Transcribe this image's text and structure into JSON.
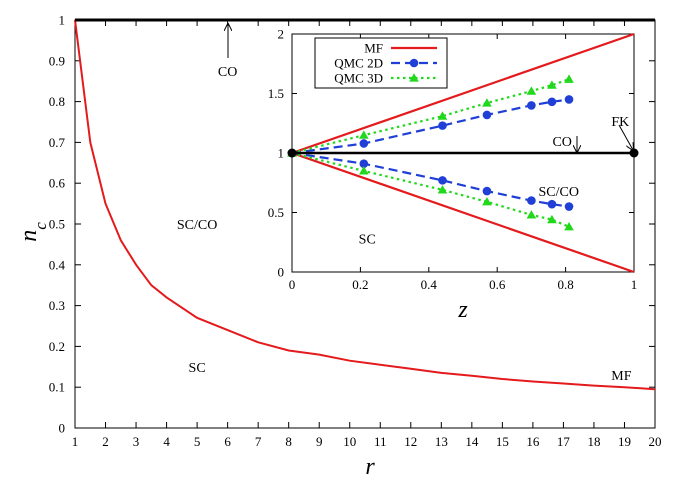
{
  "chart_data": [
    {
      "type": "line",
      "xlabel": "r",
      "ylabel": "n_c",
      "xlim": [
        1,
        20
      ],
      "ylim": [
        0,
        1
      ],
      "x_ticks": [
        1,
        2,
        3,
        4,
        5,
        6,
        7,
        8,
        9,
        10,
        11,
        12,
        13,
        14,
        15,
        16,
        17,
        18,
        19,
        20
      ],
      "y_ticks": [
        0,
        0.1,
        0.2,
        0.3,
        0.4,
        0.5,
        0.6,
        0.7,
        0.8,
        0.9,
        1
      ],
      "series": [
        {
          "color": "#e41a1c",
          "x": [
            1,
            1.5,
            2,
            2.5,
            3,
            3.5,
            4,
            5,
            6,
            7,
            8,
            9,
            10,
            11,
            12,
            13,
            14,
            15,
            16,
            17,
            18,
            19,
            20
          ],
          "y": [
            1.0,
            0.7,
            0.55,
            0.46,
            0.4,
            0.35,
            0.32,
            0.27,
            0.24,
            0.21,
            0.19,
            0.18,
            0.165,
            0.155,
            0.145,
            0.135,
            0.128,
            0.12,
            0.114,
            0.109,
            0.104,
            0.1,
            0.095
          ]
        },
        {
          "color": "#000000",
          "x": [
            1,
            20
          ],
          "y": [
            1,
            1
          ]
        }
      ],
      "annotations": [
        {
          "text": "CO",
          "x": 6,
          "y": 0.875
        },
        {
          "text": "SC/CO",
          "x": 5,
          "y": 0.5
        },
        {
          "text": "SC",
          "x": 5,
          "y": 0.15
        },
        {
          "text": "MF",
          "x": 18.9,
          "y": 0.13
        }
      ]
    },
    {
      "type": "line",
      "xlabel": "z",
      "ylabel": "",
      "xlim": [
        0,
        1
      ],
      "ylim": [
        0,
        2
      ],
      "x_ticks": [
        0,
        0.2,
        0.4,
        0.6,
        0.8,
        1
      ],
      "y_ticks": [
        0,
        0.5,
        1,
        1.5,
        2
      ],
      "legend": "top-left",
      "series": [
        {
          "name": "MF",
          "color": "#e41a1c",
          "style": "solid",
          "marker": "none",
          "x": [
            0,
            1
          ],
          "y": [
            1,
            2
          ]
        },
        {
          "name": "",
          "color": "#e41a1c",
          "style": "solid",
          "marker": "none",
          "x": [
            0,
            1
          ],
          "y": [
            1,
            0
          ]
        },
        {
          "name": "QMC 2D",
          "color": "#1f3fd6",
          "style": "dashed",
          "marker": "circle",
          "x": [
            0,
            0.21,
            0.44,
            0.57,
            0.7,
            0.76,
            0.81
          ],
          "y": [
            1,
            1.08,
            1.23,
            1.32,
            1.4,
            1.43,
            1.45
          ]
        },
        {
          "name": "",
          "color": "#1f3fd6",
          "style": "dashed",
          "marker": "circle",
          "x": [
            0,
            0.21,
            0.44,
            0.57,
            0.7,
            0.76,
            0.81
          ],
          "y": [
            1,
            0.91,
            0.77,
            0.68,
            0.6,
            0.57,
            0.55
          ]
        },
        {
          "name": "QMC 3D",
          "color": "#22d81c",
          "style": "dotted",
          "marker": "triangle",
          "x": [
            0,
            0.21,
            0.44,
            0.57,
            0.7,
            0.76,
            0.81
          ],
          "y": [
            1,
            1.15,
            1.31,
            1.42,
            1.52,
            1.57,
            1.62
          ]
        },
        {
          "name": "",
          "color": "#22d81c",
          "style": "dotted",
          "marker": "triangle",
          "x": [
            0,
            0.21,
            0.44,
            0.57,
            0.7,
            0.76,
            0.81
          ],
          "y": [
            1,
            0.85,
            0.69,
            0.59,
            0.48,
            0.44,
            0.38
          ]
        },
        {
          "name": "",
          "color": "#000000",
          "style": "solid",
          "marker": "endpoint-dot",
          "x": [
            0,
            1
          ],
          "y": [
            1,
            1
          ]
        }
      ],
      "annotations": [
        {
          "text": "CO",
          "x": 0.79,
          "y": 1.1
        },
        {
          "text": "FK",
          "x": 0.96,
          "y": 1.27
        },
        {
          "text": "SC/CO",
          "x": 0.78,
          "y": 0.68
        },
        {
          "text": "SC",
          "x": 0.22,
          "y": 0.28
        }
      ]
    }
  ]
}
